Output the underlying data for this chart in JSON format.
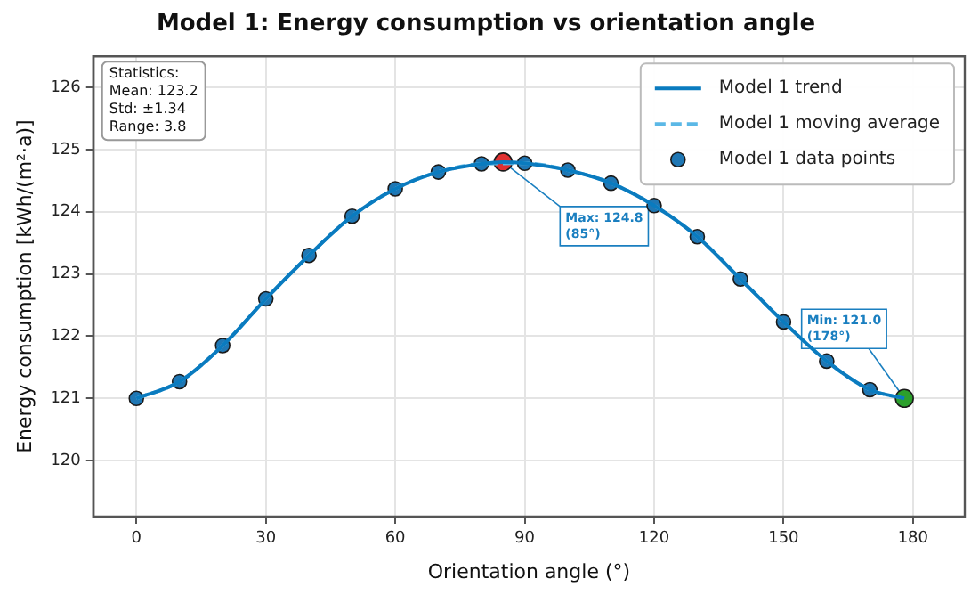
{
  "chart_data": {
    "type": "line",
    "title": "Model 1: Energy consumption vs orientation angle",
    "xlabel": "Orientation angle (°)",
    "ylabel": "Energy consumption [kWh/(m²·a)]",
    "xlim": [
      -10,
      192
    ],
    "xticks": [
      0,
      30,
      60,
      90,
      120,
      150,
      180
    ],
    "ylim": [
      119.1,
      126.5
    ],
    "yticks": [
      120,
      121,
      122,
      123,
      124,
      125,
      126
    ],
    "grid": true,
    "legend": "top right",
    "series": [
      {
        "name": "Model 1 trend",
        "color": "#0a7bbf",
        "line_style": "solid",
        "marker": "none",
        "x": [
          0,
          10,
          20,
          30,
          40,
          50,
          60,
          70,
          80,
          85,
          90,
          100,
          110,
          120,
          130,
          140,
          150,
          160,
          170,
          178
        ],
        "values": [
          121.0,
          121.27,
          121.85,
          122.6,
          123.3,
          123.93,
          124.37,
          124.64,
          124.77,
          124.8,
          124.78,
          124.67,
          124.46,
          124.1,
          123.6,
          122.92,
          122.23,
          121.6,
          121.14,
          121.0
        ]
      },
      {
        "name": "Model 1 moving average",
        "color": "#5bb8e6",
        "line_style": "dashed",
        "marker": "none",
        "x": [
          0,
          10,
          20,
          30,
          40,
          50,
          60,
          70,
          80,
          90,
          100,
          110,
          120,
          130,
          140,
          150,
          160,
          170,
          178
        ],
        "values": [
          121.0,
          121.27,
          121.85,
          122.6,
          123.3,
          123.93,
          124.37,
          124.64,
          124.77,
          124.78,
          124.67,
          124.46,
          124.1,
          123.6,
          122.92,
          122.23,
          121.6,
          121.14,
          121.0
        ]
      },
      {
        "name": "Model 1 data points",
        "type": "scatter",
        "color": "#1f77b4",
        "marker": "circle",
        "x": [
          0,
          10,
          20,
          30,
          40,
          50,
          60,
          70,
          80,
          90,
          100,
          110,
          120,
          130,
          140,
          150,
          160,
          170
        ],
        "values": [
          121.0,
          121.27,
          121.85,
          122.6,
          123.3,
          123.93,
          124.37,
          124.64,
          124.77,
          124.78,
          124.67,
          124.46,
          124.1,
          123.6,
          122.92,
          122.23,
          121.6,
          121.14
        ]
      },
      {
        "type": "scatter",
        "color": "#e03030",
        "marker": "circle",
        "x": [
          85
        ],
        "values": [
          124.8
        ]
      },
      {
        "type": "scatter",
        "color": "#2ca02c",
        "marker": "circle",
        "x": [
          178
        ],
        "values": [
          121.0
        ]
      }
    ],
    "annotations": [
      "Statistics:\nMean: 123.2\nStd: ±1.34\nRange: 3.8",
      {
        "text": "Max: 124.8\n(85°)",
        "x": 85,
        "y": 124.8
      },
      {
        "text": "Min: 121.0\n(178°)",
        "x": 178,
        "y": 121.0
      }
    ]
  }
}
